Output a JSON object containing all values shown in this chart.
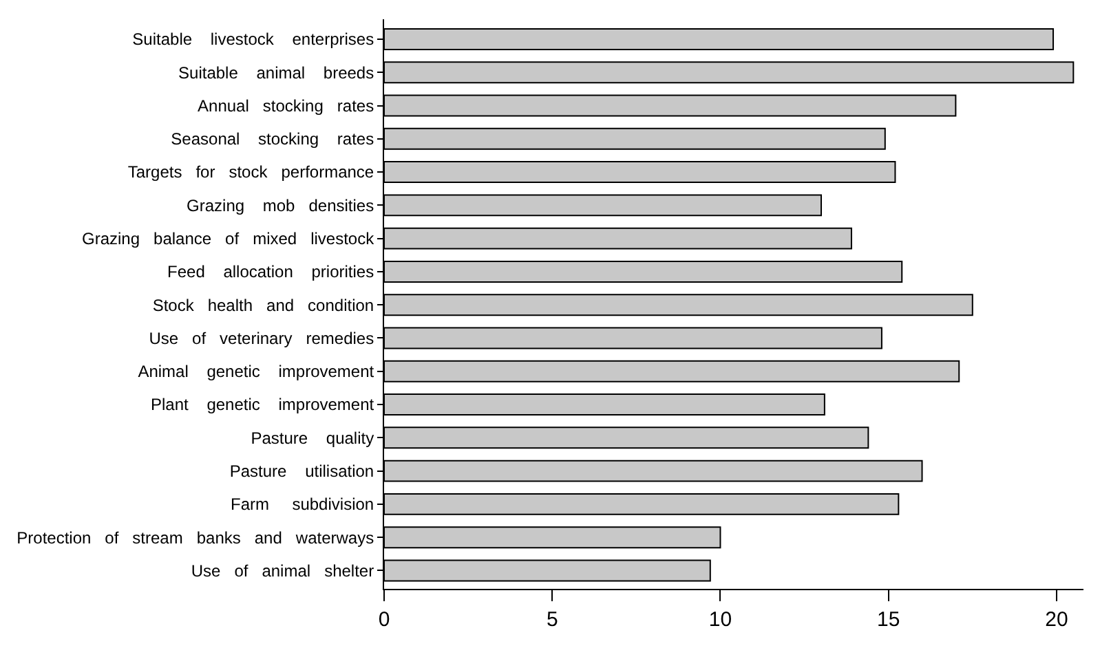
{
  "chart_data": {
    "type": "bar",
    "orientation": "horizontal",
    "categories": [
      "Suitable    livestock    enterprises",
      "Suitable    animal    breeds",
      "Annual   stocking   rates",
      "Seasonal    stocking    rates",
      "Targets   for   stock   performance",
      "Grazing    mob   densities",
      "Grazing   balance   of   mixed   livestock",
      "Feed    allocation    priorities",
      "Stock   health   and   condition",
      "Use   of   veterinary   remedies",
      "Animal    genetic    improvement",
      "Plant    genetic    improvement",
      "Pasture    quality",
      "Pasture    utilisation",
      "Farm     subdivision",
      "Protection   of   stream   banks   and   waterways",
      "Use   of   animal   shelter"
    ],
    "values": [
      19.9,
      20.5,
      17.0,
      14.9,
      15.2,
      13.0,
      13.9,
      15.4,
      17.5,
      14.8,
      17.1,
      13.1,
      14.4,
      16.0,
      15.3,
      10.0,
      9.7
    ],
    "color": "#c8c8c8",
    "xlim": [
      0,
      20.8
    ],
    "xticks": [
      0,
      5,
      10,
      15,
      20
    ]
  }
}
